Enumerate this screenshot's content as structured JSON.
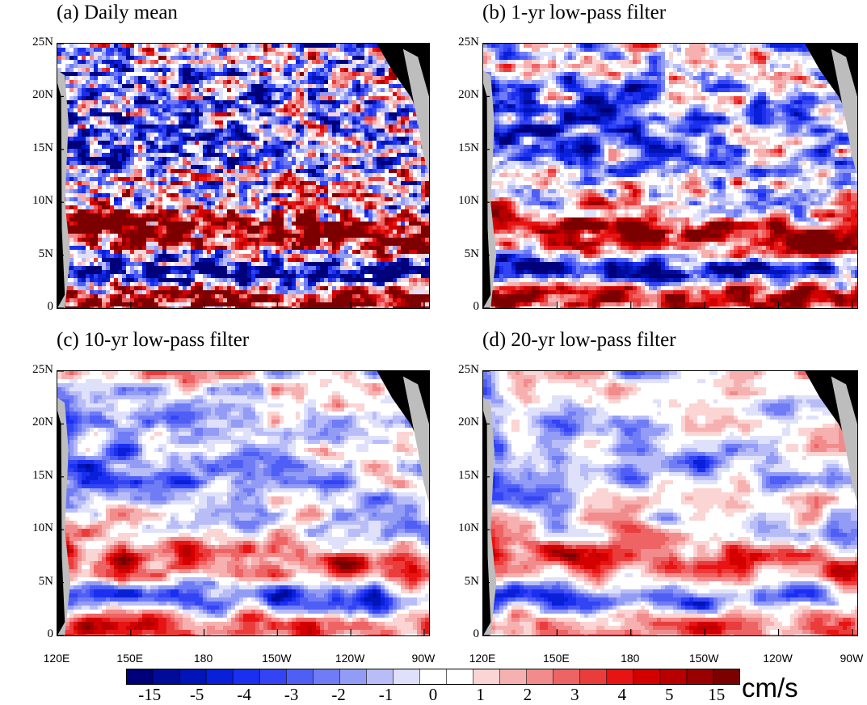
{
  "panels": [
    {
      "id": "a",
      "title": "(a) Daily mean"
    },
    {
      "id": "b",
      "title": "(b) 1-yr low-pass filter"
    },
    {
      "id": "c",
      "title": "(c) 10-yr low-pass filter"
    },
    {
      "id": "d",
      "title": "(d) 20-yr low-pass filter"
    }
  ],
  "lat_labels": [
    "25N",
    "20N",
    "15N",
    "10N",
    "5N",
    "0"
  ],
  "lon_labels": [
    "120E",
    "150E",
    "180",
    "150W",
    "120W",
    "90W"
  ],
  "colorbar": {
    "labels": [
      "-15",
      "-5",
      "-4",
      "-3",
      "-2",
      "-1",
      "0",
      "1",
      "2",
      "3",
      "4",
      "5",
      "15"
    ],
    "colors": [
      "#00007a",
      "#000b9a",
      "#0014b8",
      "#0a1fd8",
      "#1a2ff0",
      "#3344f5",
      "#4f5ff5",
      "#6f7cf5",
      "#939cf5",
      "#b8bdf8",
      "#dfe1fb",
      "#ffffff",
      "#ffffff",
      "#fbd4d4",
      "#f7b0b0",
      "#f28b8b",
      "#ee6464",
      "#eb3c3c",
      "#e81414",
      "#d40000",
      "#b80000",
      "#9a0000",
      "#7d0000"
    ],
    "units": "cm/s"
  },
  "land_colors": {
    "land": "#000000",
    "shelf": "#bdbdbd"
  }
}
